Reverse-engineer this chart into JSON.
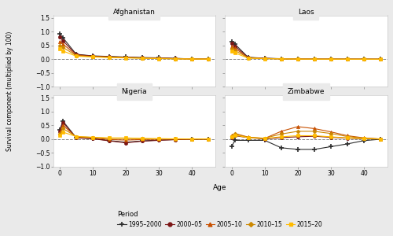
{
  "countries": [
    "Afghanistan",
    "Laos",
    "Nigeria",
    "Zimbabwe"
  ],
  "periods": [
    "1995–2000",
    "2000–05",
    "2005–10",
    "2010–15",
    "2015–20"
  ],
  "ages": [
    0,
    1,
    5,
    10,
    15,
    20,
    25,
    30,
    35,
    40,
    45
  ],
  "data": {
    "Afghanistan": [
      [
        0.93,
        0.78,
        0.18,
        0.12,
        0.1,
        0.08,
        0.06,
        0.05,
        0.03,
        0.01,
        0.005
      ],
      [
        0.8,
        0.67,
        0.17,
        0.11,
        0.09,
        0.07,
        0.05,
        0.04,
        0.025,
        0.01,
        0.005
      ],
      [
        0.65,
        0.55,
        0.15,
        0.1,
        0.08,
        0.065,
        0.045,
        0.035,
        0.02,
        0.01,
        0.005
      ],
      [
        0.5,
        0.43,
        0.13,
        0.09,
        0.07,
        0.055,
        0.04,
        0.03,
        0.015,
        0.008,
        0.003
      ],
      [
        0.38,
        0.3,
        0.11,
        0.08,
        0.06,
        0.045,
        0.03,
        0.02,
        0.01,
        0.005,
        0.002
      ]
    ],
    "Laos": [
      [
        0.65,
        0.55,
        0.07,
        0.035,
        0.018,
        0.009,
        0.004,
        0.003,
        0.002,
        0.001,
        0.001
      ],
      [
        0.57,
        0.48,
        0.06,
        0.03,
        0.015,
        0.008,
        0.004,
        0.002,
        0.001,
        0.001,
        0.0
      ],
      [
        0.48,
        0.4,
        0.055,
        0.027,
        0.013,
        0.006,
        0.003,
        0.002,
        0.001,
        0.0,
        0.0
      ],
      [
        0.38,
        0.32,
        0.045,
        0.022,
        0.011,
        0.005,
        0.002,
        0.001,
        0.001,
        0.0,
        0.0
      ],
      [
        0.28,
        0.23,
        0.038,
        0.018,
        0.009,
        0.004,
        0.002,
        0.001,
        0.0,
        0.0,
        0.0
      ]
    ],
    "Nigeria": [
      [
        0.33,
        0.65,
        0.05,
        0.02,
        -0.06,
        -0.12,
        -0.07,
        -0.04,
        -0.02,
        -0.01,
        -0.005
      ],
      [
        0.28,
        0.6,
        0.04,
        0.01,
        -0.07,
        -0.14,
        -0.08,
        -0.05,
        -0.025,
        -0.012,
        -0.005
      ],
      [
        0.22,
        0.5,
        0.07,
        0.04,
        -0.02,
        -0.04,
        -0.02,
        -0.01,
        -0.005,
        -0.002,
        -0.001
      ],
      [
        0.18,
        0.38,
        0.09,
        0.06,
        0.02,
        0.02,
        0.01,
        0.005,
        0.003,
        0.001,
        0.001
      ],
      [
        0.13,
        0.25,
        0.09,
        0.06,
        0.04,
        0.04,
        0.02,
        0.01,
        0.005,
        0.002,
        0.001
      ]
    ],
    "Zimbabwe": [
      [
        -0.28,
        -0.05,
        -0.05,
        -0.05,
        -0.32,
        -0.38,
        -0.38,
        -0.28,
        -0.18,
        -0.06,
        -0.01
      ],
      [
        0.05,
        0.12,
        0.05,
        0.0,
        0.05,
        0.08,
        0.1,
        0.06,
        0.03,
        0.01,
        0.0
      ],
      [
        0.12,
        0.2,
        0.07,
        0.02,
        0.28,
        0.45,
        0.38,
        0.26,
        0.12,
        0.04,
        0.0
      ],
      [
        0.1,
        0.18,
        0.06,
        0.03,
        0.18,
        0.28,
        0.28,
        0.2,
        0.09,
        0.03,
        0.0
      ],
      [
        0.08,
        0.14,
        0.05,
        0.02,
        0.08,
        0.12,
        0.12,
        0.08,
        0.04,
        0.01,
        0.0
      ]
    ]
  },
  "colors": [
    "#2d2d2d",
    "#7B1515",
    "#C85000",
    "#CC8800",
    "#FFBB00"
  ],
  "markers": [
    "+",
    "o",
    "^",
    "o",
    "o"
  ],
  "marker_sizes": [
    5,
    3.5,
    3.5,
    3.5,
    3.5
  ],
  "ylim": [
    -1.0,
    1.6
  ],
  "yticks": [
    -1.0,
    -0.5,
    0.0,
    0.5,
    1.0,
    1.5
  ],
  "xticks": [
    0,
    10,
    20,
    30,
    40
  ],
  "xlabel": "Age",
  "ylabel": "Survival component (multiplied by 100)",
  "bg_color": "#EAEAEA",
  "panel_bg": "#FFFFFF",
  "legend_title": "Period",
  "legend_labels": [
    "1995–2000",
    "2000–05",
    "2005–10",
    "2010–15",
    "2015–20"
  ]
}
